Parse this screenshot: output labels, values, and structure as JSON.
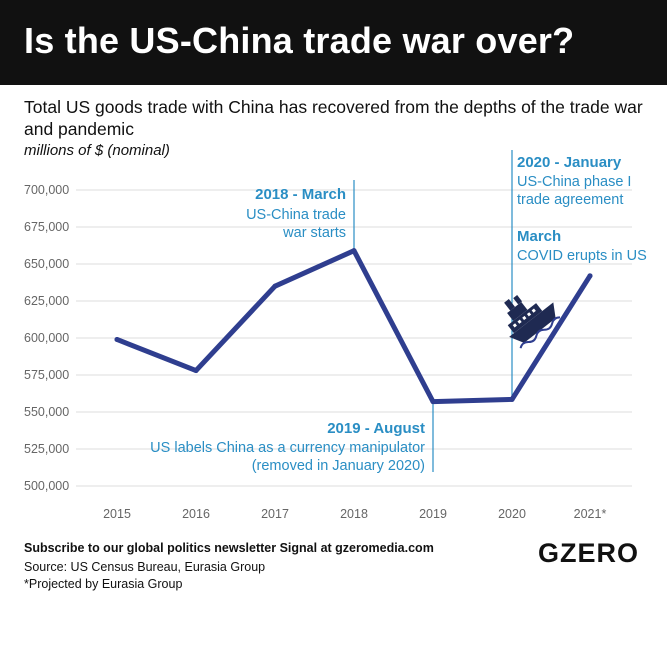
{
  "header": {
    "title": "Is the US-China trade war over?"
  },
  "subtitle": "Total US goods trade with China has recovered from the depths of the trade war and pandemic",
  "units": "millions of $ (nominal)",
  "chart_data": {
    "type": "line",
    "x": [
      "2015",
      "2016",
      "2017",
      "2018",
      "2019",
      "2020",
      "2021*"
    ],
    "series": [
      {
        "values": [
          599000,
          578000,
          635000,
          659000,
          557000,
          558500,
          642000
        ]
      }
    ],
    "ylim": [
      500000,
      700000
    ],
    "yticks": [
      500000,
      525000,
      550000,
      575000,
      600000,
      625000,
      650000,
      675000,
      700000
    ],
    "ytick_labels": [
      "500,000",
      "525,000",
      "550,000",
      "575,000",
      "600,000",
      "625,000",
      "650,000",
      "675,000",
      "700,000"
    ],
    "grid": true,
    "colors": {
      "line": "#2f3e8f",
      "annotation": "#2a8ec4",
      "grid": "#dddddd",
      "tick": "#666666"
    },
    "annotations": [
      {
        "id": "a2018",
        "x": "2018",
        "lines": [
          "2018 - March",
          "US-China trade",
          "war starts"
        ]
      },
      {
        "id": "a2019",
        "x": "2019",
        "lines": [
          "2019 - August",
          "US labels China as a currency manipulator",
          "(removed in January 2020)"
        ]
      },
      {
        "id": "a2020",
        "x": "2020",
        "lines": [
          "2020 - January",
          "US-China phase I",
          "trade agreement",
          "March",
          "COVID erupts in US"
        ]
      }
    ]
  },
  "footer": {
    "subscribe": "Subscribe to our global politics newsletter Signal at gzeromedia.com",
    "source": "Source: US Census Bureau, Eurasia Group",
    "note": "*Projected by Eurasia Group"
  },
  "logo": "GZERO",
  "icon": "sinking-ship-icon"
}
